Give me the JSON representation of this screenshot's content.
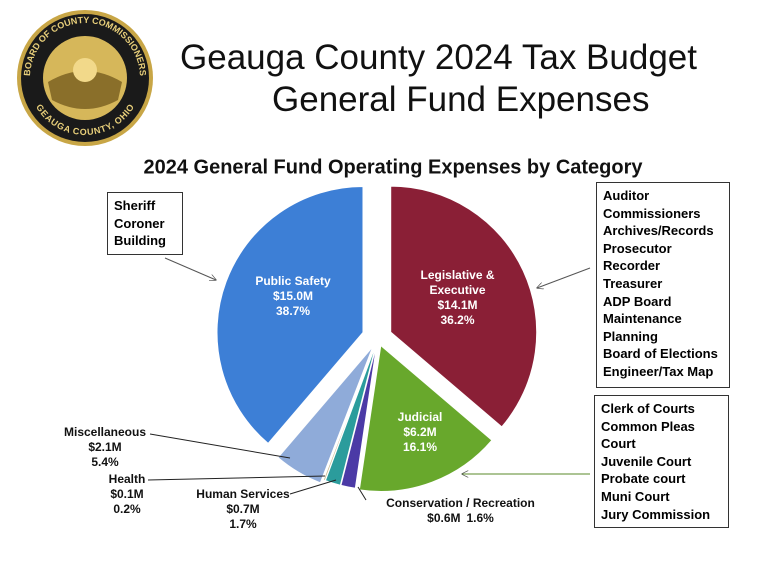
{
  "header": {
    "title": [
      "Geauga County 2024 Tax Budget",
      "General Fund Expenses"
    ],
    "logo": {
      "top": "BOARD OF COUNTY COMMISSIONERS",
      "bottom": "GEAUGA COUNTY, OHIO"
    }
  },
  "chart_data": {
    "type": "pie",
    "title": "2024 General Fund Operating Expenses by Category",
    "categories": [
      "Legislative & Executive",
      "Judicial",
      "Conservation / Recreation",
      "Human Services",
      "Health",
      "Miscellaneous",
      "Public Safety"
    ],
    "values": [
      36.2,
      16.1,
      1.6,
      1.7,
      0.2,
      5.4,
      38.7
    ],
    "value_labels": [
      "36.2%",
      "16.1%",
      "1.6%",
      "1.7%",
      "0.2%",
      "5.4%",
      "38.7%"
    ],
    "amounts": [
      14.1,
      6.2,
      0.6,
      0.7,
      0.1,
      2.1,
      15.0
    ],
    "amount_labels": [
      "$14.1M",
      "$6.2M",
      "$0.6M",
      "$0.7M",
      "$0.1M",
      "$2.1M",
      "$15.0M"
    ],
    "colors": [
      "#8a1f36",
      "#68a82c",
      "#4b3aa6",
      "#2b9c9c",
      "#c9b98a",
      "#8fabd9",
      "#3d7fd6"
    ],
    "annotations": [
      [
        "Auditor",
        "Commissioners",
        "Archives/Records",
        "Prosecutor",
        "Recorder",
        "Treasurer",
        "ADP Board",
        "Maintenance",
        "Planning",
        "Board of Elections",
        "Engineer/Tax Map"
      ],
      [
        "Clerk of Courts",
        "Common Pleas Court",
        "Juvenile Court",
        "Probate court",
        "Muni Court",
        "Jury Commission"
      ],
      null,
      null,
      null,
      null,
      [
        "Sheriff",
        "Coroner",
        "Building"
      ]
    ]
  }
}
